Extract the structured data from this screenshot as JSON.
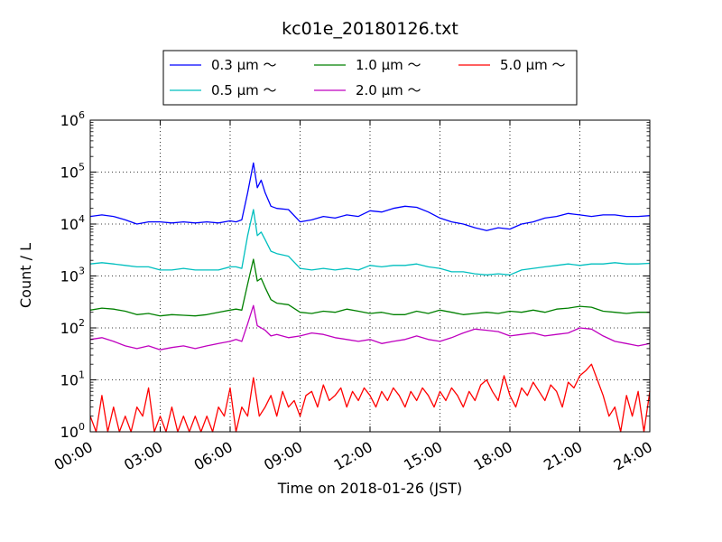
{
  "chart_data": {
    "type": "line",
    "title": "kc01e_20180126.txt",
    "xlabel": "Time on 2018-01-26 (JST)",
    "ylabel": "Count / L",
    "yscale": "log",
    "ylim": [
      1,
      1000000
    ],
    "xlim": [
      "2018-01-26 00:00",
      "2018-01-27 00:00"
    ],
    "grid": true,
    "legend_position": "top-center",
    "x_ticks": [
      "00:00",
      "03:00",
      "06:00",
      "09:00",
      "12:00",
      "15:00",
      "18:00",
      "21:00",
      "24:00"
    ],
    "y_ticks": [
      {
        "base": "10",
        "exp": "0"
      },
      {
        "base": "10",
        "exp": "1"
      },
      {
        "base": "10",
        "exp": "2"
      },
      {
        "base": "10",
        "exp": "3"
      },
      {
        "base": "10",
        "exp": "4"
      },
      {
        "base": "10",
        "exp": "5"
      },
      {
        "base": "10",
        "exp": "6"
      }
    ],
    "series": [
      {
        "name": "0.3 μm ～",
        "color": "#0000ff",
        "x": [
          "00:00",
          "00:30",
          "01:00",
          "01:30",
          "02:00",
          "02:30",
          "03:00",
          "03:30",
          "04:00",
          "04:30",
          "05:00",
          "05:30",
          "06:00",
          "06:15",
          "06:30",
          "06:45",
          "07:00",
          "07:10",
          "07:20",
          "07:30",
          "07:45",
          "08:00",
          "08:30",
          "09:00",
          "09:30",
          "10:00",
          "10:30",
          "11:00",
          "11:30",
          "12:00",
          "12:30",
          "13:00",
          "13:30",
          "14:00",
          "14:30",
          "15:00",
          "15:30",
          "16:00",
          "16:30",
          "17:00",
          "17:30",
          "18:00",
          "18:30",
          "19:00",
          "19:30",
          "20:00",
          "20:30",
          "21:00",
          "21:30",
          "22:00",
          "22:30",
          "23:00",
          "23:30",
          "24:00"
        ],
        "y": [
          14000,
          15000,
          14000,
          12000,
          10000,
          11000,
          11000,
          10500,
          11000,
          10500,
          11000,
          10500,
          11500,
          11000,
          12000,
          40000,
          150000,
          50000,
          70000,
          40000,
          22000,
          20000,
          19000,
          11000,
          12000,
          14000,
          13000,
          15000,
          14000,
          18000,
          17000,
          20000,
          22000,
          21000,
          17000,
          13000,
          11000,
          10000,
          8500,
          7500,
          8500,
          8000,
          10000,
          11000,
          13000,
          14000,
          16000,
          15000,
          14000,
          15000,
          15000,
          14000,
          14000,
          14500
        ]
      },
      {
        "name": "0.5 μm ～",
        "color": "#00bfbf",
        "x": [
          "00:00",
          "00:30",
          "01:00",
          "01:30",
          "02:00",
          "02:30",
          "03:00",
          "03:30",
          "04:00",
          "04:30",
          "05:00",
          "05:30",
          "06:00",
          "06:15",
          "06:30",
          "06:45",
          "07:00",
          "07:10",
          "07:20",
          "07:30",
          "07:45",
          "08:00",
          "08:30",
          "09:00",
          "09:30",
          "10:00",
          "10:30",
          "11:00",
          "11:30",
          "12:00",
          "12:30",
          "13:00",
          "13:30",
          "14:00",
          "14:30",
          "15:00",
          "15:30",
          "16:00",
          "16:30",
          "17:00",
          "17:30",
          "18:00",
          "18:30",
          "19:00",
          "19:30",
          "20:00",
          "20:30",
          "21:00",
          "21:30",
          "22:00",
          "22:30",
          "23:00",
          "23:30",
          "24:00"
        ],
        "y": [
          1700,
          1800,
          1700,
          1600,
          1500,
          1500,
          1300,
          1300,
          1400,
          1300,
          1300,
          1300,
          1500,
          1500,
          1400,
          6000,
          19000,
          6000,
          7000,
          5000,
          3000,
          2700,
          2400,
          1400,
          1300,
          1400,
          1300,
          1400,
          1300,
          1600,
          1500,
          1600,
          1600,
          1700,
          1500,
          1400,
          1200,
          1200,
          1100,
          1050,
          1100,
          1050,
          1300,
          1400,
          1500,
          1600,
          1700,
          1600,
          1700,
          1700,
          1800,
          1700,
          1700,
          1750
        ]
      },
      {
        "name": "1.0 μm ～",
        "color": "#008000",
        "x": [
          "00:00",
          "00:30",
          "01:00",
          "01:30",
          "02:00",
          "02:30",
          "03:00",
          "03:30",
          "04:00",
          "04:30",
          "05:00",
          "05:30",
          "06:00",
          "06:15",
          "06:30",
          "06:45",
          "07:00",
          "07:10",
          "07:20",
          "07:30",
          "07:45",
          "08:00",
          "08:30",
          "09:00",
          "09:30",
          "10:00",
          "10:30",
          "11:00",
          "11:30",
          "12:00",
          "12:30",
          "13:00",
          "13:30",
          "14:00",
          "14:30",
          "15:00",
          "15:30",
          "16:00",
          "16:30",
          "17:00",
          "17:30",
          "18:00",
          "18:30",
          "19:00",
          "19:30",
          "20:00",
          "20:30",
          "21:00",
          "21:30",
          "22:00",
          "22:30",
          "23:00",
          "23:30",
          "24:00"
        ],
        "y": [
          220,
          240,
          230,
          210,
          180,
          190,
          170,
          180,
          175,
          170,
          180,
          200,
          220,
          230,
          220,
          700,
          2100,
          800,
          900,
          600,
          350,
          300,
          280,
          200,
          190,
          210,
          200,
          230,
          210,
          190,
          200,
          180,
          180,
          210,
          190,
          220,
          200,
          180,
          190,
          200,
          190,
          210,
          200,
          220,
          200,
          230,
          240,
          260,
          250,
          210,
          200,
          190,
          200,
          200
        ]
      },
      {
        "name": "2.0 μm ～",
        "color": "#bf00bf",
        "x": [
          "00:00",
          "00:30",
          "01:00",
          "01:30",
          "02:00",
          "02:30",
          "03:00",
          "03:30",
          "04:00",
          "04:30",
          "05:00",
          "05:30",
          "06:00",
          "06:15",
          "06:30",
          "06:45",
          "07:00",
          "07:10",
          "07:20",
          "07:30",
          "07:45",
          "08:00",
          "08:30",
          "09:00",
          "09:30",
          "10:00",
          "10:30",
          "11:00",
          "11:30",
          "12:00",
          "12:30",
          "13:00",
          "13:30",
          "14:00",
          "14:30",
          "15:00",
          "15:30",
          "16:00",
          "16:30",
          "17:00",
          "17:30",
          "18:00",
          "18:30",
          "19:00",
          "19:30",
          "20:00",
          "20:30",
          "21:00",
          "21:30",
          "22:00",
          "22:30",
          "23:00",
          "23:30",
          "24:00"
        ],
        "y": [
          60,
          65,
          55,
          45,
          40,
          45,
          38,
          42,
          45,
          40,
          45,
          50,
          55,
          60,
          55,
          120,
          270,
          110,
          100,
          90,
          70,
          75,
          65,
          70,
          80,
          75,
          65,
          60,
          55,
          60,
          50,
          55,
          60,
          70,
          60,
          55,
          65,
          80,
          95,
          90,
          85,
          70,
          75,
          80,
          70,
          75,
          80,
          100,
          95,
          70,
          55,
          50,
          45,
          50
        ]
      },
      {
        "name": "5.0 μm ～",
        "color": "#ff0000",
        "x": [
          "00:00",
          "00:15",
          "00:30",
          "00:45",
          "01:00",
          "01:15",
          "01:30",
          "01:45",
          "02:00",
          "02:15",
          "02:30",
          "02:45",
          "03:00",
          "03:15",
          "03:30",
          "03:45",
          "04:00",
          "04:15",
          "04:30",
          "04:45",
          "05:00",
          "05:15",
          "05:30",
          "05:45",
          "06:00",
          "06:15",
          "06:30",
          "06:45",
          "07:00",
          "07:15",
          "07:30",
          "07:45",
          "08:00",
          "08:15",
          "08:30",
          "08:45",
          "09:00",
          "09:15",
          "09:30",
          "09:45",
          "10:00",
          "10:15",
          "10:30",
          "10:45",
          "11:00",
          "11:15",
          "11:30",
          "11:45",
          "12:00",
          "12:15",
          "12:30",
          "12:45",
          "13:00",
          "13:15",
          "13:30",
          "13:45",
          "14:00",
          "14:15",
          "14:30",
          "14:45",
          "15:00",
          "15:15",
          "15:30",
          "15:45",
          "16:00",
          "16:15",
          "16:30",
          "16:45",
          "17:00",
          "17:15",
          "17:30",
          "17:45",
          "18:00",
          "18:15",
          "18:30",
          "18:45",
          "19:00",
          "19:15",
          "19:30",
          "19:45",
          "20:00",
          "20:15",
          "20:30",
          "20:45",
          "21:00",
          "21:15",
          "21:30",
          "21:45",
          "22:00",
          "22:15",
          "22:30",
          "22:45",
          "23:00",
          "23:15",
          "23:30",
          "23:45",
          "24:00"
        ],
        "y": [
          2,
          1,
          5,
          1,
          3,
          1,
          2,
          1,
          3,
          2,
          7,
          1,
          2,
          1,
          3,
          1,
          2,
          1,
          2,
          1,
          2,
          1,
          3,
          2,
          7,
          1,
          3,
          2,
          11,
          2,
          3,
          5,
          2,
          6,
          3,
          4,
          2,
          5,
          6,
          3,
          8,
          4,
          5,
          7,
          3,
          6,
          4,
          7,
          5,
          3,
          6,
          4,
          7,
          5,
          3,
          6,
          4,
          7,
          5,
          3,
          6,
          4,
          7,
          5,
          3,
          6,
          4,
          8,
          10,
          6,
          4,
          12,
          5,
          3,
          7,
          5,
          9,
          6,
          4,
          8,
          6,
          3,
          9,
          7,
          12,
          15,
          20,
          10,
          5,
          2,
          3,
          1,
          5,
          2,
          6,
          1,
          6
        ]
      }
    ]
  }
}
